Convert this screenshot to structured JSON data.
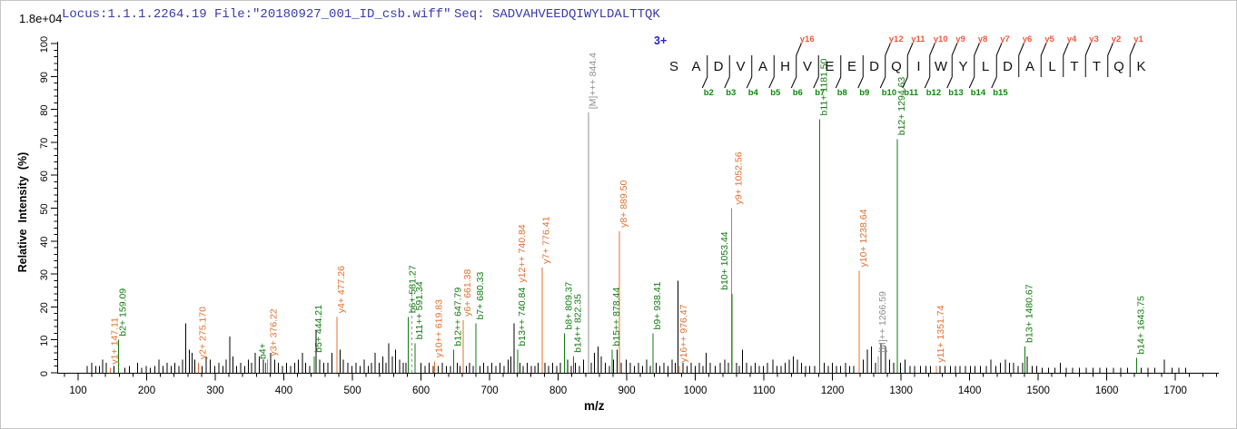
{
  "header": {
    "locus_text": "Locus:1.1.1.2264.19 File:\"20180927_001_ID_csb.wiff\"",
    "seq_text": "Seq: SADVAHVEEDQIWYLDALTTQK"
  },
  "colors": {
    "header_text": "#3a3aad",
    "b_series": "#117a11",
    "y_series": "#e4702e",
    "precursor_series": "#8f8f8f",
    "noise": "#000000",
    "sequence_letters": "#111111",
    "y_ion_tag": "#f2573d",
    "b_ion_tag": "#0c8a0c",
    "charge_label": "#2525cc",
    "axis": "#000000",
    "dashed_line": "#9a9a9a"
  },
  "chart_data": {
    "type": "bar",
    "subtype": "peptide_msms_annotated_spectrum",
    "title": "",
    "xlabel": "m/z",
    "ylabel": "Relative  Intensity  (%)",
    "intensity_scale_label": "1.8e+04",
    "precursor_charge_label": "3+",
    "xlim": [
      70,
      1762
    ],
    "ylim": [
      0,
      100
    ],
    "grid": false,
    "x_ticks": [
      100,
      200,
      300,
      400,
      500,
      600,
      700,
      800,
      900,
      1000,
      1100,
      1200,
      1300,
      1400,
      1500,
      1600,
      1700
    ],
    "x_minor_tick_step": 20,
    "y_ticks": [
      0,
      10,
      20,
      30,
      40,
      50,
      60,
      70,
      80,
      90,
      100
    ],
    "y_minor_tick_step": 2,
    "peptide_sequence": "SADVAHVEEDQIWYLDALTTQK",
    "matched_b_cleavages": [
      2,
      3,
      4,
      5,
      6,
      7,
      8,
      9,
      10,
      11,
      12,
      13,
      14,
      15
    ],
    "matched_y_ions": [
      [
        "y16",
        6
      ],
      [
        "y12",
        10
      ],
      [
        "y11",
        11
      ],
      [
        "y10",
        12
      ],
      [
        "y9",
        13
      ],
      [
        "y8",
        14
      ],
      [
        "y7",
        15
      ],
      [
        "y6",
        16
      ],
      [
        "y5",
        17
      ],
      [
        "y4",
        18
      ],
      [
        "y3",
        19
      ],
      [
        "y2",
        20
      ],
      [
        "y1",
        21
      ]
    ],
    "annotated_peaks": [
      {
        "mz": 147.11,
        "pct": 1.5,
        "series": "y",
        "label": "y1+ 147.11"
      },
      {
        "mz": 159.09,
        "pct": 10,
        "series": "b",
        "label": "b2+ 159.09"
      },
      {
        "mz": 275.17,
        "pct": 3,
        "series": "y",
        "label": "y2+ 275.170"
      },
      {
        "mz": 373.2,
        "pct": 3,
        "series": "b",
        "label": "b4+",
        "ldx": -8
      },
      {
        "mz": 376.22,
        "pct": 4,
        "series": "y",
        "label": "y3+ 376.22",
        "ldx": 2
      },
      {
        "mz": 444.21,
        "pct": 5,
        "series": "b",
        "label": "b5+ 444.21"
      },
      {
        "mz": 477.26,
        "pct": 17,
        "series": "y",
        "label": "y4+ 477.26"
      },
      {
        "mz": 581.27,
        "pct": 17,
        "series": "b",
        "label": "b6+ 581.27"
      },
      {
        "mz": 591.34,
        "pct": 9,
        "series": "b",
        "label": "b11++ 591.34"
      },
      {
        "mz": 619.83,
        "pct": 3.5,
        "series": "y",
        "label": "y10++ 619.83"
      },
      {
        "mz": 647.79,
        "pct": 7,
        "series": "b",
        "label": "b12++ 647.79"
      },
      {
        "mz": 661.38,
        "pct": 16,
        "series": "y",
        "label": "y6+ 661.38"
      },
      {
        "mz": 680.33,
        "pct": 15,
        "series": "b",
        "label": "b7+ 680.33"
      },
      {
        "mz": 740.84,
        "pct": 7,
        "series": "b",
        "label": "b13++ 740.84",
        "label2": {
          "text": "y12++ 740.84",
          "series": "y"
        }
      },
      {
        "mz": 776.41,
        "pct": 32,
        "series": "y",
        "label": "y7+ 776.41"
      },
      {
        "mz": 809.37,
        "pct": 12,
        "series": "b",
        "label": "b8+ 809.37"
      },
      {
        "mz": 822.35,
        "pct": 5,
        "series": "b",
        "label": "b14++ 822.35"
      },
      {
        "mz": 844.4,
        "pct": 79,
        "series": "M",
        "label": "[M]+++ 844.4"
      },
      {
        "mz": 878.44,
        "pct": 7,
        "series": "b",
        "label": "b15++ 878.44"
      },
      {
        "mz": 889.5,
        "pct": 43,
        "series": "y",
        "label": "y8+ 889.50"
      },
      {
        "mz": 938.41,
        "pct": 12,
        "series": "b",
        "label": "b9+ 938.41"
      },
      {
        "mz": 976.47,
        "pct": 2,
        "series": "y",
        "label": "y16++ 976.47"
      },
      {
        "mz": 1052.56,
        "pct": 50,
        "series": "y",
        "label": "y9+ 1052.56",
        "ldx": 3
      },
      {
        "mz": 1053.44,
        "pct": 24,
        "series": "b",
        "label": "b10+ 1053.44",
        "ldx": -13
      },
      {
        "mz": 1181.5,
        "pct": 77,
        "series": "b",
        "label": "b11+ 1181.50"
      },
      {
        "mz": 1238.64,
        "pct": 31,
        "series": "y",
        "label": "y10+ 1238.64"
      },
      {
        "mz": 1266.59,
        "pct": 5,
        "series": "M",
        "label": "[M]++ 1266.59"
      },
      {
        "mz": 1294.63,
        "pct": 71,
        "series": "b",
        "label": "b12+ 1294.63"
      },
      {
        "mz": 1351.74,
        "pct": 2,
        "series": "y",
        "label": "y11+ 1351.74"
      },
      {
        "mz": 1480.67,
        "pct": 8,
        "series": "b",
        "label": "b13+ 1480.67"
      },
      {
        "mz": 1643.75,
        "pct": 4.5,
        "series": "b",
        "label": "b14+ 1643.75"
      }
    ],
    "unmatched_dashed_line": {
      "mz": 587,
      "pct": 26
    },
    "noise_peaks": [
      [
        113,
        2
      ],
      [
        120,
        3
      ],
      [
        126,
        2
      ],
      [
        131,
        2
      ],
      [
        136,
        4
      ],
      [
        141,
        3
      ],
      [
        152,
        2
      ],
      [
        168,
        1.5
      ],
      [
        175,
        2
      ],
      [
        187,
        3
      ],
      [
        193,
        1.5
      ],
      [
        199,
        2
      ],
      [
        205,
        1.5
      ],
      [
        212,
        2
      ],
      [
        218,
        4
      ],
      [
        224,
        2
      ],
      [
        230,
        3
      ],
      [
        236,
        2
      ],
      [
        241,
        3
      ],
      [
        247,
        2
      ],
      [
        252,
        4
      ],
      [
        257,
        15
      ],
      [
        262,
        7
      ],
      [
        266,
        6
      ],
      [
        270,
        4
      ],
      [
        281,
        2
      ],
      [
        287,
        5
      ],
      [
        293,
        4
      ],
      [
        299,
        2
      ],
      [
        305,
        3
      ],
      [
        311,
        2
      ],
      [
        316,
        4
      ],
      [
        321,
        11
      ],
      [
        326,
        5
      ],
      [
        331,
        2
      ],
      [
        337,
        3
      ],
      [
        343,
        2
      ],
      [
        348,
        4
      ],
      [
        353,
        3
      ],
      [
        358,
        6
      ],
      [
        364,
        5
      ],
      [
        370,
        4
      ],
      [
        381,
        6
      ],
      [
        387,
        4
      ],
      [
        392,
        3
      ],
      [
        398,
        2
      ],
      [
        404,
        3
      ],
      [
        410,
        2
      ],
      [
        416,
        3
      ],
      [
        421,
        4
      ],
      [
        427,
        6
      ],
      [
        432,
        3
      ],
      [
        438,
        2
      ],
      [
        447,
        13
      ],
      [
        452,
        4
      ],
      [
        458,
        3
      ],
      [
        464,
        3
      ],
      [
        470,
        6
      ],
      [
        482,
        7
      ],
      [
        487,
        4
      ],
      [
        493,
        3
      ],
      [
        499,
        2
      ],
      [
        505,
        3
      ],
      [
        511,
        2
      ],
      [
        517,
        4
      ],
      [
        523,
        2
      ],
      [
        528,
        3
      ],
      [
        533,
        6
      ],
      [
        539,
        3
      ],
      [
        544,
        5
      ],
      [
        549,
        3
      ],
      [
        553,
        9
      ],
      [
        558,
        5
      ],
      [
        563,
        7
      ],
      [
        569,
        4
      ],
      [
        574,
        3
      ],
      [
        578,
        3
      ],
      [
        600,
        3
      ],
      [
        606,
        2
      ],
      [
        612,
        3
      ],
      [
        618,
        2
      ],
      [
        625,
        2
      ],
      [
        631,
        3
      ],
      [
        637,
        2
      ],
      [
        643,
        2
      ],
      [
        653,
        3
      ],
      [
        657,
        2
      ],
      [
        666,
        2
      ],
      [
        671,
        3
      ],
      [
        676,
        2
      ],
      [
        686,
        2
      ],
      [
        691,
        3
      ],
      [
        697,
        2
      ],
      [
        703,
        3
      ],
      [
        709,
        2
      ],
      [
        715,
        3
      ],
      [
        721,
        2
      ],
      [
        727,
        4
      ],
      [
        731,
        5
      ],
      [
        736,
        15
      ],
      [
        744,
        3
      ],
      [
        749,
        2
      ],
      [
        755,
        3
      ],
      [
        761,
        2
      ],
      [
        766,
        2
      ],
      [
        771,
        3
      ],
      [
        781,
        3
      ],
      [
        786,
        2
      ],
      [
        792,
        3
      ],
      [
        798,
        2
      ],
      [
        803,
        3
      ],
      [
        814,
        4
      ],
      [
        819,
        2
      ],
      [
        825,
        3
      ],
      [
        831,
        2
      ],
      [
        837,
        4
      ],
      [
        848,
        3
      ],
      [
        853,
        6
      ],
      [
        858,
        8
      ],
      [
        863,
        5
      ],
      [
        869,
        3
      ],
      [
        875,
        2
      ],
      [
        881,
        4
      ],
      [
        886,
        7
      ],
      [
        892,
        3
      ],
      [
        899,
        4
      ],
      [
        905,
        3
      ],
      [
        911,
        2
      ],
      [
        917,
        3
      ],
      [
        923,
        2
      ],
      [
        929,
        4
      ],
      [
        934,
        2
      ],
      [
        943,
        3
      ],
      [
        948,
        2
      ],
      [
        954,
        3
      ],
      [
        960,
        2
      ],
      [
        966,
        4
      ],
      [
        971,
        3
      ],
      [
        975,
        28
      ],
      [
        982,
        3
      ],
      [
        988,
        2
      ],
      [
        994,
        3
      ],
      [
        1000,
        2
      ],
      [
        1006,
        3
      ],
      [
        1011,
        2
      ],
      [
        1016,
        6
      ],
      [
        1022,
        3
      ],
      [
        1029,
        2
      ],
      [
        1036,
        3
      ],
      [
        1043,
        4
      ],
      [
        1048,
        3
      ],
      [
        1060,
        3
      ],
      [
        1064,
        2
      ],
      [
        1069,
        7
      ],
      [
        1075,
        3
      ],
      [
        1081,
        2
      ],
      [
        1087,
        3
      ],
      [
        1093,
        2
      ],
      [
        1099,
        2
      ],
      [
        1105,
        3
      ],
      [
        1113,
        4
      ],
      [
        1119,
        2
      ],
      [
        1125,
        2
      ],
      [
        1131,
        3
      ],
      [
        1137,
        4
      ],
      [
        1143,
        5
      ],
      [
        1149,
        4
      ],
      [
        1155,
        3
      ],
      [
        1161,
        2
      ],
      [
        1167,
        2
      ],
      [
        1174,
        2
      ],
      [
        1188,
        3
      ],
      [
        1194,
        2
      ],
      [
        1200,
        3
      ],
      [
        1206,
        2
      ],
      [
        1212,
        2
      ],
      [
        1219,
        3
      ],
      [
        1225,
        2
      ],
      [
        1231,
        2
      ],
      [
        1245,
        4
      ],
      [
        1251,
        7
      ],
      [
        1257,
        8
      ],
      [
        1263,
        3
      ],
      [
        1271,
        9
      ],
      [
        1277,
        8
      ],
      [
        1283,
        4
      ],
      [
        1289,
        3
      ],
      [
        1299,
        3
      ],
      [
        1306,
        4
      ],
      [
        1313,
        2
      ],
      [
        1320,
        2
      ],
      [
        1328,
        2
      ],
      [
        1336,
        2
      ],
      [
        1343,
        2
      ],
      [
        1357,
        2
      ],
      [
        1364,
        2
      ],
      [
        1372,
        2
      ],
      [
        1379,
        2
      ],
      [
        1386,
        2
      ],
      [
        1394,
        2
      ],
      [
        1401,
        2
      ],
      [
        1408,
        2
      ],
      [
        1416,
        2
      ],
      [
        1424,
        2
      ],
      [
        1431,
        4
      ],
      [
        1438,
        2
      ],
      [
        1445,
        3
      ],
      [
        1452,
        4
      ],
      [
        1458,
        3
      ],
      [
        1464,
        3
      ],
      [
        1471,
        2
      ],
      [
        1477,
        3
      ],
      [
        1484,
        5
      ],
      [
        1491,
        2
      ],
      [
        1498,
        2
      ],
      [
        1506,
        1.5
      ],
      [
        1515,
        1.5
      ],
      [
        1524,
        1.5
      ],
      [
        1532,
        3
      ],
      [
        1541,
        1.5
      ],
      [
        1550,
        1.5
      ],
      [
        1560,
        1.5
      ],
      [
        1570,
        1.5
      ],
      [
        1580,
        1.5
      ],
      [
        1590,
        1.5
      ],
      [
        1600,
        1.5
      ],
      [
        1610,
        1.5
      ],
      [
        1620,
        1.5
      ],
      [
        1630,
        1.5
      ],
      [
        1650,
        1.5
      ],
      [
        1660,
        1.5
      ],
      [
        1670,
        1.5
      ],
      [
        1684,
        4
      ],
      [
        1695,
        1.5
      ],
      [
        1705,
        1.5
      ],
      [
        1715,
        1.5
      ]
    ]
  }
}
